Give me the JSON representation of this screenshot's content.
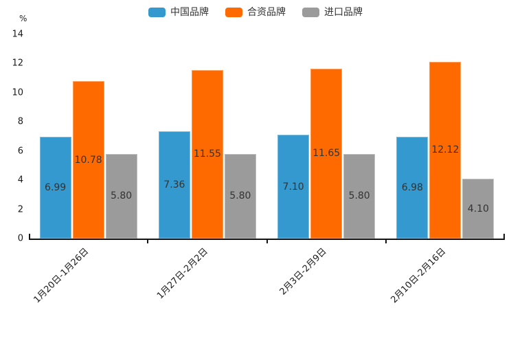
{
  "page": {
    "background": "#ffffff",
    "text_color": "#333333",
    "axis_color": "#141414"
  },
  "legend": {
    "position": "top-center",
    "items": [
      {
        "key": "china-brand",
        "label": "中国品牌",
        "color": "#3499CE"
      },
      {
        "key": "joint-venture-brand",
        "label": "合资品牌",
        "color": "#FF6A00"
      },
      {
        "key": "import-brand",
        "label": "进口品牌",
        "color": "#9B9B9B"
      }
    ]
  },
  "chart_data": {
    "type": "bar",
    "title": "",
    "xlabel": "",
    "ylabel": "%",
    "ylim": [
      0,
      14
    ],
    "yticks": [
      0,
      2,
      4,
      6,
      8,
      10,
      12,
      14
    ],
    "grid": false,
    "legend_position": "top",
    "value_label_decimals": 2,
    "categories": [
      "1月20日-1月26日",
      "1月27日-2月2日",
      "2月3日-2月9日",
      "2月10日-2月16日"
    ],
    "series": [
      {
        "key": "china-brand",
        "name": "中国品牌",
        "color": "#3499CE",
        "values": [
          6.99,
          7.36,
          7.1,
          6.98
        ]
      },
      {
        "key": "joint-venture-brand",
        "name": "合资品牌",
        "color": "#FF6A00",
        "values": [
          10.78,
          11.55,
          11.65,
          12.12
        ]
      },
      {
        "key": "import-brand",
        "name": "进口品牌",
        "color": "#9B9B9B",
        "values": [
          5.8,
          5.8,
          5.8,
          4.1
        ]
      }
    ]
  }
}
